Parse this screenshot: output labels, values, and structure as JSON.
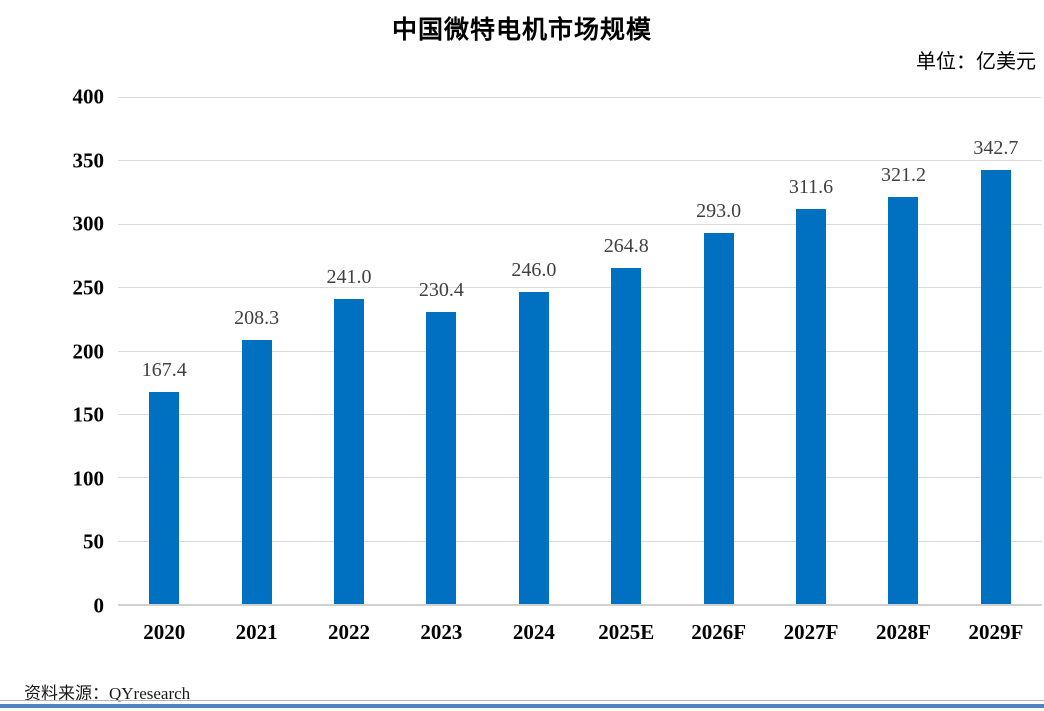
{
  "chart": {
    "title": "中国微特电机市场规模",
    "unit_label": "单位：亿美元",
    "source_label": "资料来源：QYresearch"
  },
  "chart_data": {
    "type": "bar",
    "title": "中国微特电机市场规模",
    "unit": "亿美元",
    "categories": [
      "2020",
      "2021",
      "2022",
      "2023",
      "2024",
      "2025E",
      "2026F",
      "2027F",
      "2028F",
      "2029F"
    ],
    "values": [
      167.4,
      208.3,
      241.0,
      230.4,
      246.0,
      264.8,
      293.0,
      311.6,
      321.2,
      342.7
    ],
    "value_labels": [
      "167.4",
      "208.3",
      "241.0",
      "230.4",
      "246.0",
      "264.8",
      "293.0",
      "311.6",
      "321.2",
      "342.7"
    ],
    "y_ticks": [
      0,
      50,
      100,
      150,
      200,
      250,
      300,
      350,
      400
    ],
    "ylim": [
      0,
      400
    ],
    "xlabel": "",
    "ylabel": "",
    "legend": "none",
    "grid": "horizontal",
    "source": "QYresearch"
  },
  "colors": {
    "bar": "#0070C0",
    "gridline": "#dadada",
    "axis_baseline": "#d1d1d1",
    "footer_accent": "#4F81BD",
    "value_label_text": "#404040"
  }
}
